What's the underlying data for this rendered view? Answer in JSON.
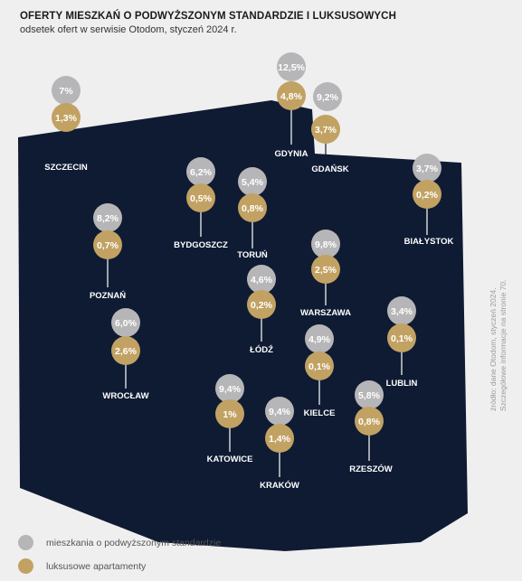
{
  "title": "OFERTY MIESZKAŃ O PODWYŻSZONYM STANDARDZIE I LUKSUSOWYCH",
  "subtitle": "odsetek ofert w serwisie Otodom, styczeń 2024 r.",
  "source": {
    "line1": "źródło: dane Otodom, styczeń 2024.",
    "line2": "Szczegółowe informacje na stronie 70."
  },
  "colors": {
    "map": "#0f1b33",
    "standard": "#b6b6b8",
    "luxury": "#c2a263",
    "background": "#efefef"
  },
  "legend": [
    {
      "label": "mieszkania o podwyższonym standardzie",
      "color": "#b6b6b8"
    },
    {
      "label": "luksusowe apartamenty",
      "color": "#c2a263"
    }
  ],
  "cities": [
    {
      "name": "SZCZECIN",
      "standard": "7%",
      "luxury": "1,3%"
    },
    {
      "name": "GDYNIA",
      "standard": "12,5%",
      "luxury": "4,8%"
    },
    {
      "name": "GDAŃSK",
      "standard": "9,2%",
      "luxury": "3,7%"
    },
    {
      "name": "BIAŁYSTOK",
      "standard": "3,7%",
      "luxury": "0,2%"
    },
    {
      "name": "BYDGOSZCZ",
      "standard": "6,2%",
      "luxury": "0,5%"
    },
    {
      "name": "TORUŃ",
      "standard": "5,4%",
      "luxury": "0,8%"
    },
    {
      "name": "POZNAŃ",
      "standard": "8,2%",
      "luxury": "0,7%"
    },
    {
      "name": "WARSZAWA",
      "standard": "9,8%",
      "luxury": "2,5%"
    },
    {
      "name": "ŁÓDŹ",
      "standard": "4,6%",
      "luxury": "0,2%"
    },
    {
      "name": "WROCŁAW",
      "standard": "6,0%",
      "luxury": "2,6%"
    },
    {
      "name": "LUBLIN",
      "standard": "3,4%",
      "luxury": "0,1%"
    },
    {
      "name": "KIELCE",
      "standard": "4,9%",
      "luxury": "0,1%"
    },
    {
      "name": "KATOWICE",
      "standard": "9,4%",
      "luxury": "1%"
    },
    {
      "name": "KRAKÓW",
      "standard": "9,4%",
      "luxury": "1,4%"
    },
    {
      "name": "RZESZÓW",
      "standard": "5,8%",
      "luxury": "0,8%"
    }
  ]
}
